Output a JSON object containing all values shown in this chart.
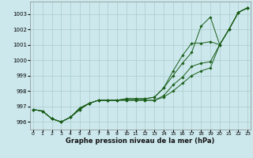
{
  "xlabel": "Graphe pression niveau de la mer (hPa)",
  "background_color": "#cce8ec",
  "grid_color": "#aacccc",
  "line_color": "#1a5e1a",
  "ylim": [
    995.5,
    1003.8
  ],
  "xlim": [
    -0.3,
    23.3
  ],
  "yticks": [
    996,
    997,
    998,
    999,
    1000,
    1001,
    1002,
    1003
  ],
  "xticks": [
    0,
    1,
    2,
    3,
    4,
    5,
    6,
    7,
    8,
    9,
    10,
    11,
    12,
    13,
    14,
    15,
    16,
    17,
    18,
    19,
    20,
    21,
    22,
    23
  ],
  "series": [
    [
      996.8,
      996.7,
      996.2,
      996.0,
      996.3,
      996.8,
      997.2,
      997.4,
      997.4,
      997.4,
      997.4,
      997.4,
      997.4,
      997.4,
      997.6,
      998.0,
      998.5,
      999.0,
      999.3,
      999.5,
      1001.0,
      1002.0,
      1003.1,
      1003.4
    ],
    [
      996.8,
      996.7,
      996.2,
      996.0,
      996.3,
      996.8,
      997.2,
      997.4,
      997.4,
      997.4,
      997.4,
      997.4,
      997.4,
      997.4,
      997.7,
      998.4,
      998.9,
      999.6,
      999.8,
      999.9,
      1001.0,
      1002.0,
      1003.1,
      1003.4
    ],
    [
      996.8,
      996.7,
      996.2,
      996.0,
      996.3,
      996.9,
      997.2,
      997.4,
      997.4,
      997.4,
      997.5,
      997.5,
      997.5,
      997.6,
      998.2,
      999.3,
      1000.3,
      1001.1,
      1001.1,
      1001.2,
      1001.0,
      1002.0,
      1003.1,
      1003.4
    ],
    [
      996.8,
      996.7,
      996.2,
      996.0,
      996.3,
      996.9,
      997.2,
      997.4,
      997.4,
      997.4,
      997.5,
      997.5,
      997.5,
      997.6,
      998.2,
      999.0,
      999.8,
      1000.5,
      1002.2,
      1002.8,
      1001.0,
      1002.0,
      1003.1,
      1003.4
    ]
  ]
}
